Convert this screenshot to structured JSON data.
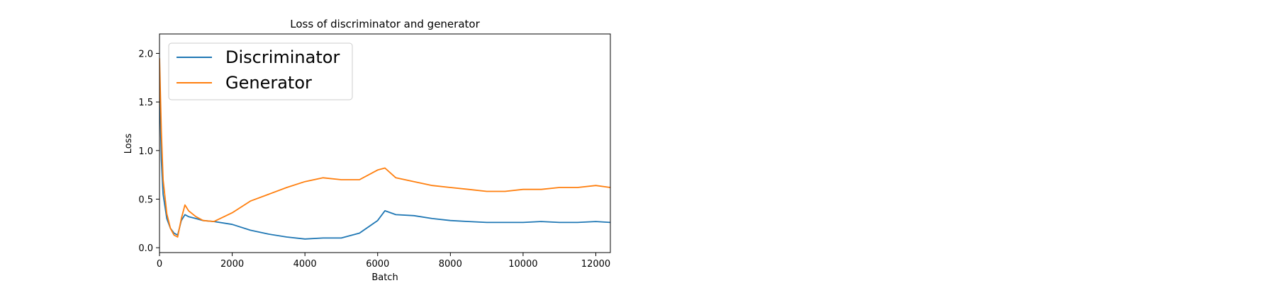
{
  "chart_data": {
    "type": "line",
    "title": "Loss of discriminator and generator",
    "xlabel": "Batch",
    "ylabel": "Loss",
    "xlim": [
      0,
      12400
    ],
    "ylim": [
      -0.05,
      2.2
    ],
    "xticks": [
      0,
      2000,
      4000,
      6000,
      8000,
      10000,
      12000
    ],
    "yticks": [
      0.0,
      0.5,
      1.0,
      1.5,
      2.0
    ],
    "xtick_labels": [
      "0",
      "2000",
      "4000",
      "6000",
      "8000",
      "10000",
      "12000"
    ],
    "ytick_labels": [
      "0.0",
      "0.5",
      "1.0",
      "1.5",
      "2.0"
    ],
    "grid": false,
    "legend_position": "top-left",
    "series": [
      {
        "name": "Discriminator",
        "color": "#1f77b4",
        "x": [
          0,
          50,
          100,
          200,
          300,
          400,
          500,
          600,
          700,
          800,
          1000,
          1200,
          1500,
          2000,
          2500,
          3000,
          3500,
          4000,
          4500,
          5000,
          5500,
          6000,
          6200,
          6500,
          7000,
          7500,
          8000,
          8500,
          9000,
          9500,
          10000,
          10500,
          11000,
          11500,
          12000,
          12400
        ],
        "y": [
          1.75,
          0.9,
          0.55,
          0.3,
          0.2,
          0.15,
          0.13,
          0.28,
          0.34,
          0.32,
          0.3,
          0.28,
          0.27,
          0.24,
          0.18,
          0.14,
          0.11,
          0.09,
          0.1,
          0.1,
          0.15,
          0.28,
          0.38,
          0.34,
          0.33,
          0.3,
          0.28,
          0.27,
          0.26,
          0.26,
          0.26,
          0.27,
          0.26,
          0.26,
          0.27,
          0.26
        ]
      },
      {
        "name": "Generator",
        "color": "#ff7f0e",
        "x": [
          0,
          50,
          100,
          200,
          300,
          400,
          500,
          600,
          700,
          800,
          1000,
          1200,
          1500,
          2000,
          2500,
          3000,
          3500,
          4000,
          4500,
          5000,
          5500,
          6000,
          6200,
          6500,
          7000,
          7500,
          8000,
          8500,
          9000,
          9500,
          10000,
          10500,
          11000,
          11500,
          12000,
          12400
        ],
        "y": [
          1.95,
          1.2,
          0.7,
          0.35,
          0.2,
          0.13,
          0.11,
          0.3,
          0.44,
          0.38,
          0.32,
          0.28,
          0.27,
          0.36,
          0.48,
          0.55,
          0.62,
          0.68,
          0.72,
          0.7,
          0.7,
          0.8,
          0.82,
          0.72,
          0.68,
          0.64,
          0.62,
          0.6,
          0.58,
          0.58,
          0.6,
          0.6,
          0.62,
          0.62,
          0.64,
          0.62
        ]
      }
    ]
  }
}
